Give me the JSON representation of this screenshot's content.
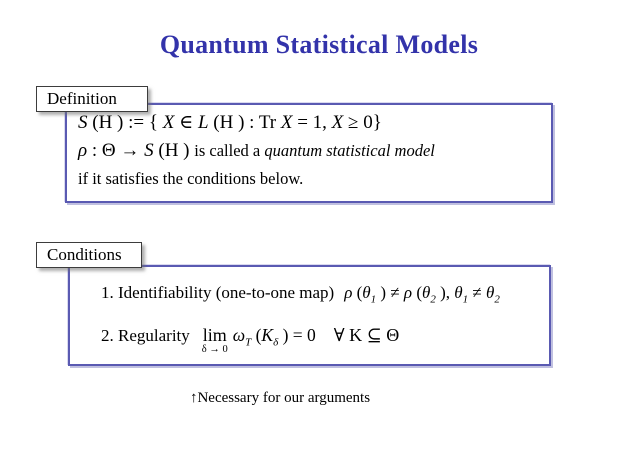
{
  "title": "Quantum Statistical Models",
  "colors": {
    "title_blue": "#3333aa",
    "panel_border": "#5a5ab2",
    "panel_shadow": "#c0c0e0",
    "tag_border": "#3c3c3c",
    "text": "#000000",
    "background": "#ffffff"
  },
  "definition": {
    "label": "Definition",
    "line1": {
      "s": "S",
      "a": " (H ) := { ",
      "x1": "X",
      "b": "  ∈  ",
      "l": "L",
      "c": " (H ) : Tr ",
      "x2": "X",
      "d": "  = 1, ",
      "x3": "X",
      "e": "  ≥  0}"
    },
    "line2": {
      "rho": "ρ",
      "a": " : Θ  →  ",
      "s": "S",
      "b": " (H ) ",
      "text": "is called a ",
      "italic": "quantum statistical model"
    },
    "line3": "if it satisfies the conditions below."
  },
  "conditions": {
    "label": "Conditions",
    "item1": {
      "text": "1. Identifiability (one-to-one map)",
      "math": {
        "rho1": "ρ",
        "p1": " (",
        "th1": "θ",
        "s1": "1",
        "p2": " )  ≠  ",
        "rho2": "ρ",
        "p3": " (",
        "th2": "θ",
        "s2": "2",
        "p4": " ), ",
        "th3": "θ",
        "s3": "1",
        "p5": "  ≠  ",
        "th4": "θ",
        "s4": "2"
      }
    },
    "item2": {
      "text": "2. Regularity",
      "lim": "lim",
      "lim_sub": "δ → 0",
      "omega": "ω",
      "omega_sub": "T",
      "open": " (",
      "k": "K",
      "k_sub": "δ",
      "close": " ) = 0",
      "forall": "∀ K  ⊆  Θ"
    }
  },
  "footnote": "↑Necessary for our arguments"
}
